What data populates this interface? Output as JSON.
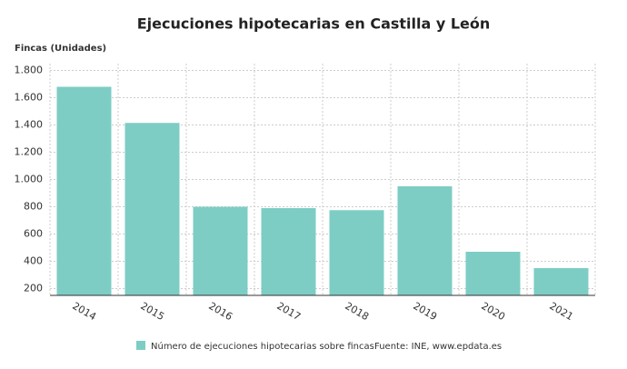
{
  "chart_data": {
    "type": "bar",
    "title": "Ejecuciones hipotecarias en Castilla y León",
    "y_label": "Fincas (Unidades)",
    "categories": [
      "2014",
      "2015",
      "2016",
      "2017",
      "2018",
      "2019",
      "2020",
      "2021"
    ],
    "series": [
      {
        "name": "Número de ejecuciones hipotecarias sobre fincas",
        "color": "#7dcdc4",
        "values": [
          1680,
          1415,
          800,
          790,
          775,
          950,
          470,
          350
        ]
      }
    ],
    "source": "Fuente: INE, www.epdata.es",
    "ylim": [
      150,
      1850
    ],
    "yticks": [
      200,
      400,
      600,
      800,
      {
        "value": 1000,
        "label": "1.000"
      },
      {
        "value": 1200,
        "label": "1.200"
      },
      {
        "value": 1400,
        "label": "1.400"
      },
      {
        "value": 1600,
        "label": "1.600"
      },
      {
        "value": 1800,
        "label": "1.800"
      }
    ],
    "grid": true
  }
}
